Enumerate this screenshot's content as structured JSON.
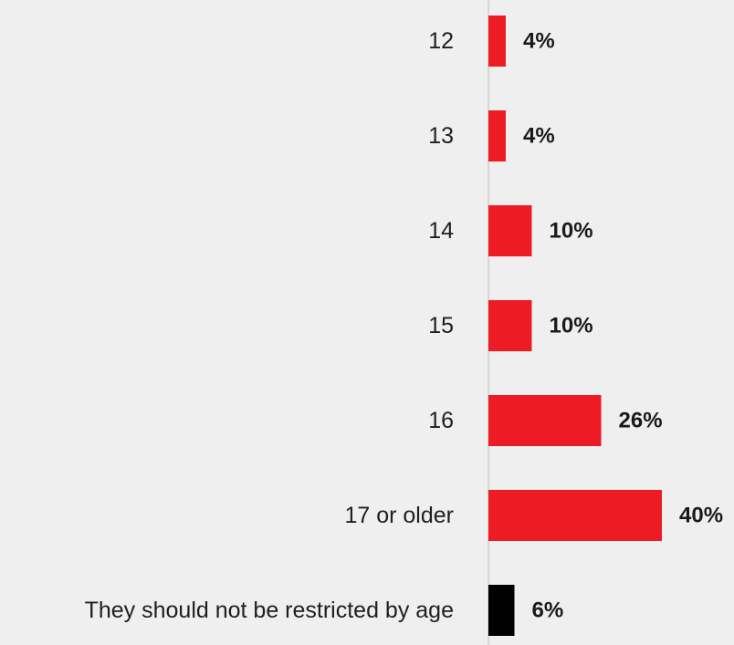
{
  "chart_data": {
    "type": "bar",
    "orientation": "horizontal",
    "categories": [
      "12",
      "13",
      "14",
      "15",
      "16",
      "17 or older",
      "They should not be restricted by age"
    ],
    "values": [
      4,
      4,
      10,
      10,
      26,
      40,
      6
    ],
    "value_labels": [
      "4%",
      "4%",
      "10%",
      "10%",
      "26%",
      "40%",
      "6%"
    ],
    "unit": "%",
    "bar_colors": [
      "#ed1c24",
      "#ed1c24",
      "#ed1c24",
      "#ed1c24",
      "#ed1c24",
      "#ed1c24",
      "#000000"
    ],
    "xlim": [
      0,
      40
    ],
    "grid": false,
    "legend": "none",
    "title": "",
    "xlabel": "",
    "ylabel": ""
  }
}
